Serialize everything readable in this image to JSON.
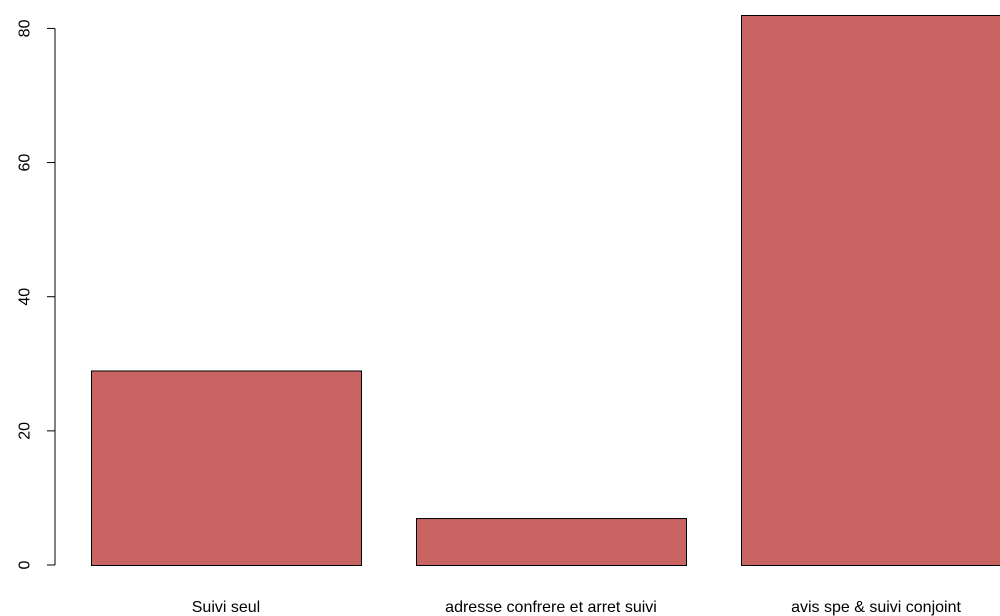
{
  "chart_data": {
    "type": "bar",
    "categories": [
      "Suivi seul",
      "adresse confrere et arret suivi",
      "avis spe & suivi conjoint"
    ],
    "values": [
      29,
      7,
      82
    ],
    "title": "",
    "xlabel": "",
    "ylabel": "",
    "ylim": [
      0,
      82
    ],
    "yticks": [
      0,
      20,
      40,
      60,
      80
    ],
    "grid": false,
    "bar_color": "#c86462",
    "bar_edge_color": "#000000"
  }
}
